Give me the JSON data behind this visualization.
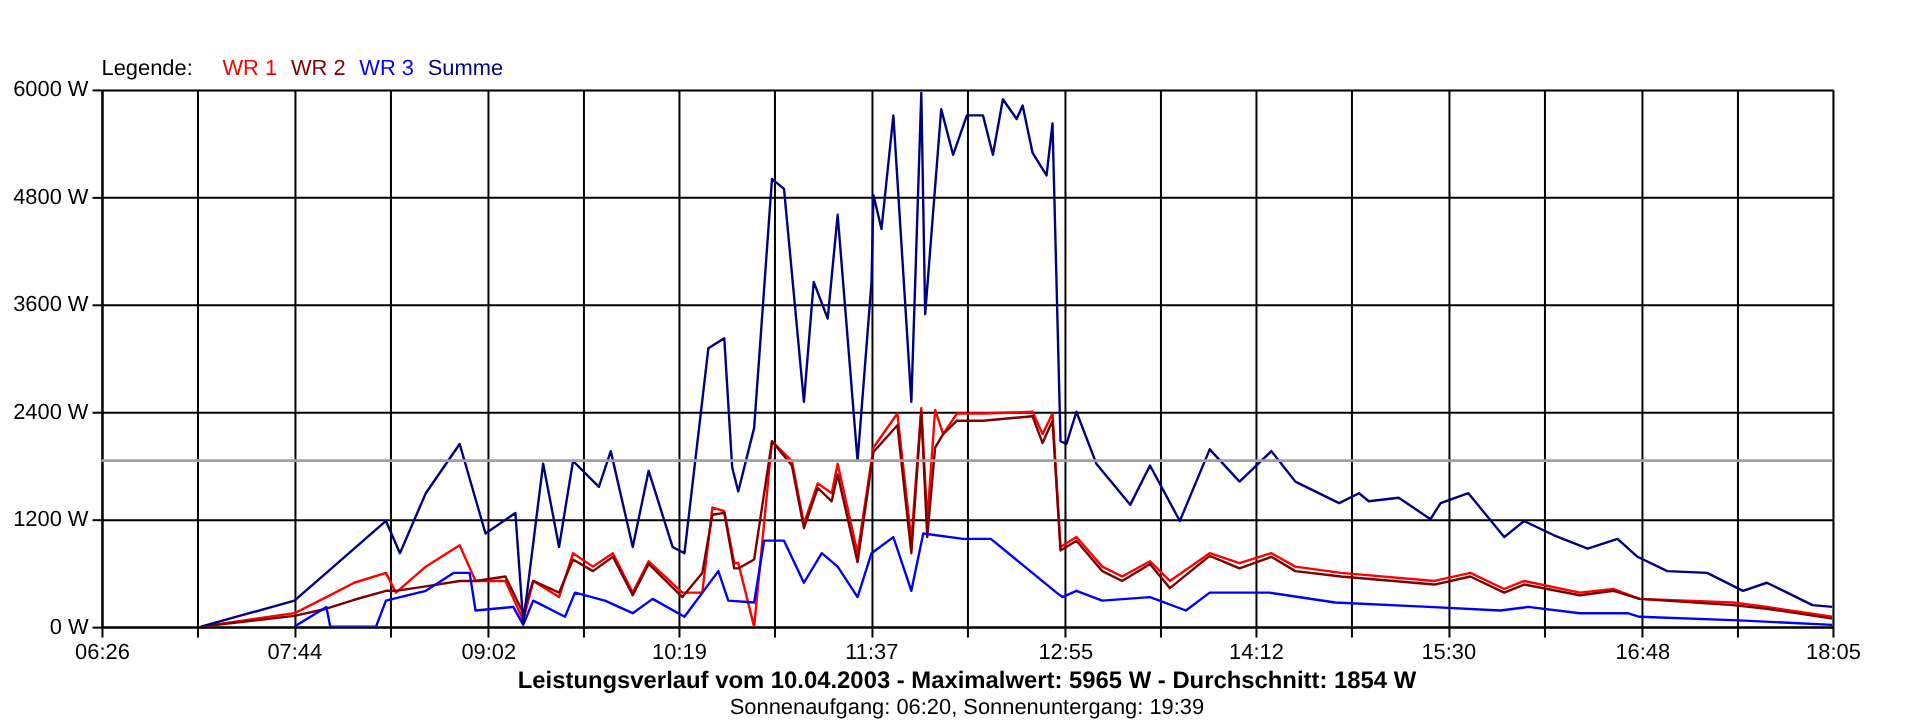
{
  "chart_data": {
    "type": "line",
    "title": "Leistungsverlauf vom 10.04.2003 - Maximalwert: 5965 W - Durchschnitt: 1854 W",
    "subtitle": "Sonnenaufgang: 06:20, Sonnenuntergang: 19:39",
    "legend_title": "Legende:",
    "legend": "top left",
    "grid": true,
    "marker": "none",
    "line_style": "solid",
    "xlim": [
      6.4333,
      18.0833
    ],
    "ylim": [
      0,
      6000
    ],
    "xticks": [
      {
        "value": 6.4333,
        "label": "06:26"
      },
      {
        "value": 7.0806,
        "label": null
      },
      {
        "value": 7.7278,
        "label": "07:44"
      },
      {
        "value": 8.375,
        "label": null
      },
      {
        "value": 9.0333,
        "label": "09:02"
      },
      {
        "value": 9.6694,
        "label": null
      },
      {
        "value": 10.3167,
        "label": "10:19"
      },
      {
        "value": 10.9639,
        "label": null
      },
      {
        "value": 11.6111,
        "label": "11:37"
      },
      {
        "value": 12.2583,
        "label": null
      },
      {
        "value": 12.9167,
        "label": "12:55"
      },
      {
        "value": 13.5528,
        "label": null
      },
      {
        "value": 14.2,
        "label": "14:12"
      },
      {
        "value": 14.8472,
        "label": null
      },
      {
        "value": 15.4944,
        "label": "15:30"
      },
      {
        "value": 16.1417,
        "label": null
      },
      {
        "value": 16.8,
        "label": "16:48"
      },
      {
        "value": 17.4361,
        "label": null
      },
      {
        "value": 18.0833,
        "label": "18:05"
      }
    ],
    "yticks": [
      {
        "value": 0,
        "label": "0 W"
      },
      {
        "value": 1200,
        "label": "1200 W"
      },
      {
        "value": 2400,
        "label": "2400 W"
      },
      {
        "value": 3600,
        "label": "3600 W"
      },
      {
        "value": 4800,
        "label": "4800 W"
      },
      {
        "value": 6000,
        "label": "6000 W"
      }
    ],
    "ref_lines": [
      {
        "axis": "y",
        "value": 1854,
        "color": "#a0a0a0"
      }
    ],
    "series": [
      {
        "name": "WR 1",
        "color": "#ff0000",
        "x": [
          7.103,
          7.732,
          7.947,
          8.134,
          8.348,
          8.415,
          8.616,
          8.844,
          8.951,
          9.152,
          9.272,
          9.339,
          9.513,
          9.607,
          9.741,
          9.875,
          10.009,
          10.116,
          10.343,
          10.477,
          10.545,
          10.625,
          10.692,
          10.719,
          10.826,
          10.946,
          11.08,
          11.161,
          11.254,
          11.348,
          11.388,
          11.522,
          11.629,
          11.79,
          11.884,
          11.951,
          11.991,
          12.044,
          12.098,
          12.191,
          12.366,
          12.7,
          12.767,
          12.834,
          12.888,
          12.995,
          13.169,
          13.303,
          13.49,
          13.624,
          13.892,
          14.093,
          14.307,
          14.468,
          14.776,
          15.405,
          15.646,
          15.874,
          16.008,
          16.383,
          16.61,
          16.785,
          17.414,
          17.642,
          18.083
        ],
        "values": [
          0,
          150,
          330,
          490,
          600,
          380,
          670,
          910,
          510,
          510,
          70,
          510,
          330,
          820,
          670,
          820,
          380,
          730,
          380,
          380,
          1330,
          1290,
          710,
          710,
          0,
          2070,
          1850,
          1150,
          1600,
          1490,
          1820,
          820,
          2000,
          2380,
          960,
          2440,
          1180,
          2420,
          2150,
          2380,
          2380,
          2400,
          2150,
          2380,
          890,
          1000,
          670,
          560,
          730,
          510,
          820,
          710,
          820,
          670,
          600,
          510,
          600,
          420,
          510,
          380,
          420,
          310,
          270,
          220,
          110
        ]
      },
      {
        "name": "WR 2",
        "color": "#800000",
        "x": [
          7.103,
          7.732,
          7.947,
          8.134,
          8.348,
          8.415,
          8.616,
          8.844,
          8.951,
          9.152,
          9.272,
          9.339,
          9.513,
          9.607,
          9.741,
          9.875,
          10.009,
          10.116,
          10.343,
          10.477,
          10.545,
          10.625,
          10.692,
          10.719,
          10.826,
          10.946,
          11.08,
          11.161,
          11.254,
          11.348,
          11.388,
          11.522,
          11.629,
          11.79,
          11.884,
          11.951,
          11.991,
          12.044,
          12.098,
          12.191,
          12.366,
          12.7,
          12.767,
          12.834,
          12.888,
          12.995,
          13.169,
          13.303,
          13.49,
          13.624,
          13.892,
          14.093,
          14.307,
          14.468,
          14.776,
          15.405,
          15.646,
          15.874,
          16.008,
          16.383,
          16.61,
          16.785,
          17.414,
          17.642,
          18.083
        ],
        "values": [
          0,
          120,
          200,
          300,
          400,
          400,
          450,
          510,
          510,
          560,
          150,
          510,
          380,
          750,
          620,
          780,
          350,
          700,
          330,
          600,
          1250,
          1270,
          650,
          650,
          750,
          2070,
          1800,
          1100,
          1550,
          1400,
          1700,
          720,
          1950,
          2250,
          820,
          2400,
          1000,
          2000,
          2150,
          2300,
          2300,
          2350,
          2050,
          2300,
          850,
          960,
          620,
          510,
          700,
          430,
          790,
          650,
          780,
          620,
          560,
          470,
          560,
          380,
          470,
          350,
          400,
          310,
          240,
          200,
          90
        ]
      },
      {
        "name": "WR 3",
        "color": "#0000ff",
        "x": [
          7.732,
          7.947,
          7.973,
          8.281,
          8.348,
          8.616,
          8.803,
          8.911,
          8.951,
          9.205,
          9.272,
          9.339,
          9.553,
          9.62,
          9.821,
          10.009,
          10.143,
          10.357,
          10.585,
          10.652,
          10.826,
          10.893,
          11.027,
          11.161,
          11.281,
          11.388,
          11.522,
          11.616,
          11.763,
          11.884,
          11.964,
          12.232,
          12.419,
          12.861,
          12.901,
          12.995,
          13.169,
          13.49,
          13.732,
          13.892,
          14.294,
          14.736,
          15.365,
          15.847,
          16.035,
          16.383,
          16.704,
          16.785,
          17.454,
          18.083
        ],
        "values": [
          0,
          220,
          0,
          0,
          290,
          400,
          600,
          600,
          180,
          220,
          20,
          290,
          110,
          380,
          290,
          150,
          310,
          110,
          620,
          290,
          270,
          960,
          960,
          490,
          820,
          670,
          330,
          820,
          1000,
          400,
          1040,
          980,
          980,
          380,
          330,
          400,
          290,
          330,
          180,
          380,
          380,
          270,
          220,
          180,
          220,
          150,
          150,
          110,
          70,
          20
        ]
      },
      {
        "name": "Summe",
        "color": "#000080",
        "x": [
          7.103,
          7.732,
          7.947,
          8.348,
          8.442,
          8.616,
          8.844,
          9.018,
          9.219,
          9.272,
          9.406,
          9.513,
          9.607,
          9.781,
          9.861,
          10.009,
          10.116,
          10.277,
          10.357,
          10.518,
          10.625,
          10.678,
          10.719,
          10.826,
          10.946,
          11.027,
          11.161,
          11.227,
          11.321,
          11.388,
          11.522,
          11.616,
          11.629,
          11.683,
          11.763,
          11.884,
          11.951,
          11.977,
          12.085,
          12.165,
          12.258,
          12.366,
          12.433,
          12.5,
          12.593,
          12.633,
          12.7,
          12.794,
          12.834,
          12.888,
          12.928,
          12.995,
          13.129,
          13.357,
          13.49,
          13.691,
          13.892,
          14.093,
          14.307,
          14.468,
          14.763,
          14.897,
          14.963,
          15.164,
          15.378,
          15.446,
          15.633,
          15.874,
          16.008,
          16.209,
          16.436,
          16.637,
          16.771,
          16.972,
          17.24,
          17.481,
          17.642,
          17.949,
          18.083
        ],
        "values": [
          0,
          290,
          600,
          1180,
          820,
          1490,
          2040,
          1040,
          1270,
          40,
          1820,
          890,
          1850,
          1560,
          1960,
          890,
          1740,
          890,
          820,
          3110,
          3220,
          1780,
          1510,
          2220,
          5000,
          4890,
          2510,
          3850,
          3440,
          4600,
          1850,
          3850,
          4820,
          4440,
          5710,
          2510,
          5960,
          3490,
          5780,
          5270,
          5710,
          5710,
          5270,
          5890,
          5670,
          5820,
          5290,
          5040,
          5620,
          2070,
          2040,
          2400,
          1820,
          1360,
          1800,
          1180,
          1980,
          1620,
          1960,
          1620,
          1380,
          1490,
          1400,
          1440,
          1200,
          1380,
          1490,
          1000,
          1180,
          1020,
          870,
          980,
          780,
          620,
          600,
          400,
          490,
          240,
          220
        ]
      }
    ]
  }
}
